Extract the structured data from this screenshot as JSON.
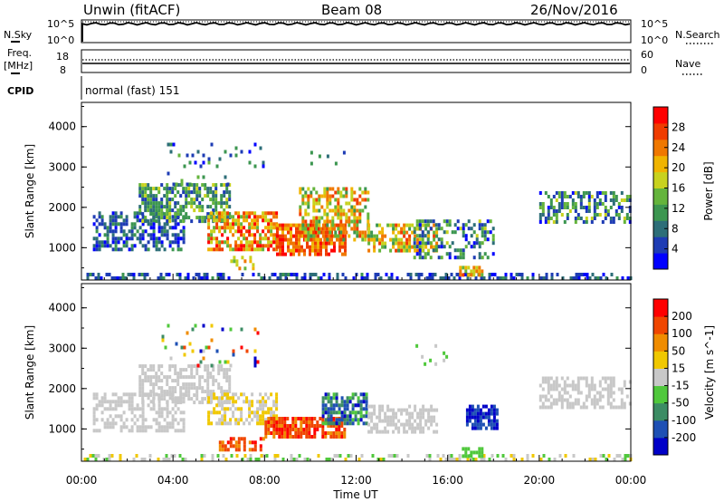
{
  "header": {
    "station": "Unwin (fitACF)",
    "beam": "Beam 08",
    "date": "26/Nov/2016"
  },
  "top_panels": {
    "nsky_label": "N.Sky",
    "nsky_ticks": [
      "10^5",
      "10^0"
    ],
    "nsearch_label": "N.Search",
    "nsearch_ticks": [
      "10^5",
      "10^0"
    ],
    "freq_label": "Freq.",
    "freq_unit": "[MHz]",
    "freq_ticks": [
      "18",
      "8"
    ],
    "nave_label": "Nave",
    "nave_ticks": [
      "60",
      "0"
    ],
    "cpid_label": "CPID",
    "cpid_value": "normal (fast) 151"
  },
  "chart_data": [
    {
      "type": "heatmap",
      "name": "power",
      "ylabel": "Slant Range [km]",
      "yticks": [
        "1000",
        "2000",
        "3000",
        "4000"
      ],
      "ylim": [
        200,
        4600
      ],
      "xlim": [
        0,
        24
      ],
      "colorbar_label": "Power [dB]",
      "colorbar_ticks": [
        "28",
        "24",
        "20",
        "16",
        "12",
        "8",
        "4"
      ],
      "colorscale": [
        "#0000ff",
        "#1e3cb4",
        "#2d6e78",
        "#3c9650",
        "#64b43c",
        "#c8d21e",
        "#f0b400",
        "#f07800",
        "#f03c00",
        "#ff0000"
      ]
    },
    {
      "type": "heatmap",
      "name": "velocity",
      "ylabel": "Slant Range [km]",
      "yticks": [
        "1000",
        "2000",
        "3000",
        "4000"
      ],
      "ylim": [
        200,
        4600
      ],
      "xlim": [
        0,
        24
      ],
      "xlabel": "Time UT",
      "xticks": [
        "00:00",
        "04:00",
        "08:00",
        "12:00",
        "16:00",
        "20:00",
        "00:00"
      ],
      "colorbar_label": "Velocity [m s^-1]",
      "colorbar_ticks": [
        "200",
        "100",
        "50",
        "15",
        "-15",
        "-50",
        "-100",
        "-200"
      ],
      "colorscale": [
        "#0000c8",
        "#1e50b4",
        "#3c8c64",
        "#50c83c",
        "#c8c8c8",
        "#f0c800",
        "#f08c00",
        "#f04600",
        "#ff0000"
      ]
    }
  ]
}
